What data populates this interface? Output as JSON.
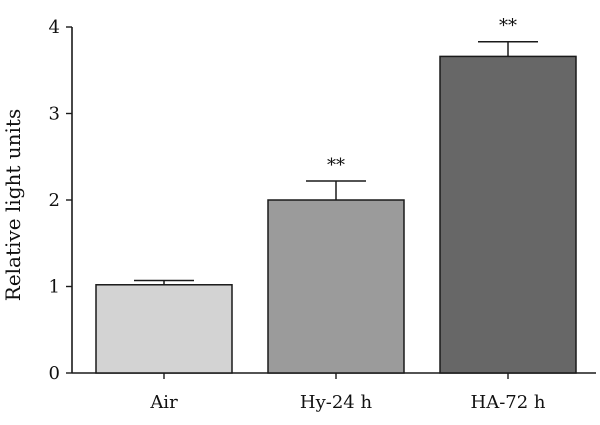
{
  "chart_data": {
    "type": "bar",
    "title": "",
    "xlabel": "",
    "ylabel": "Relative light units",
    "categories": [
      "Air",
      "Hy-24 h",
      "HA-72 h"
    ],
    "values": [
      1.02,
      2.0,
      3.66
    ],
    "error": [
      0.05,
      0.22,
      0.17
    ],
    "significance": [
      "",
      "**",
      "**"
    ],
    "ylim": [
      0,
      4
    ],
    "yticks": [
      0,
      1,
      2,
      3,
      4
    ],
    "grid": false,
    "bar_colors": [
      "#d3d3d3",
      "#9b9b9b",
      "#676767"
    ],
    "edge_color": "#1a1a1a"
  }
}
